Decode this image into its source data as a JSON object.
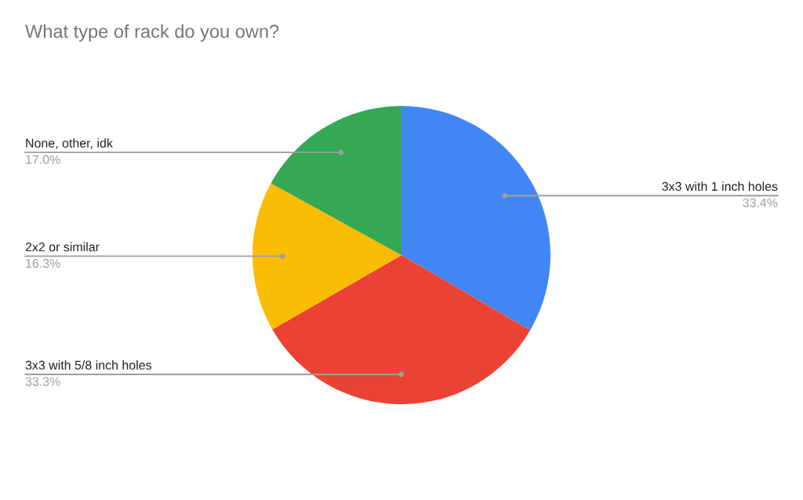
{
  "chart_data": {
    "type": "pie",
    "title": "What type of rack do you own?",
    "categories": [
      "3x3 with 1 inch holes",
      "3x3 with 5/8 inch holes",
      "2x2 or similar",
      "None, other, idk"
    ],
    "values": [
      33.4,
      33.3,
      16.3,
      17.0
    ],
    "colors": [
      "#4285f4",
      "#ea4335",
      "#fbbc04",
      "#34a853"
    ],
    "value_labels": [
      "33.4%",
      "33.3%",
      "16.3%",
      "17.0%"
    ]
  }
}
